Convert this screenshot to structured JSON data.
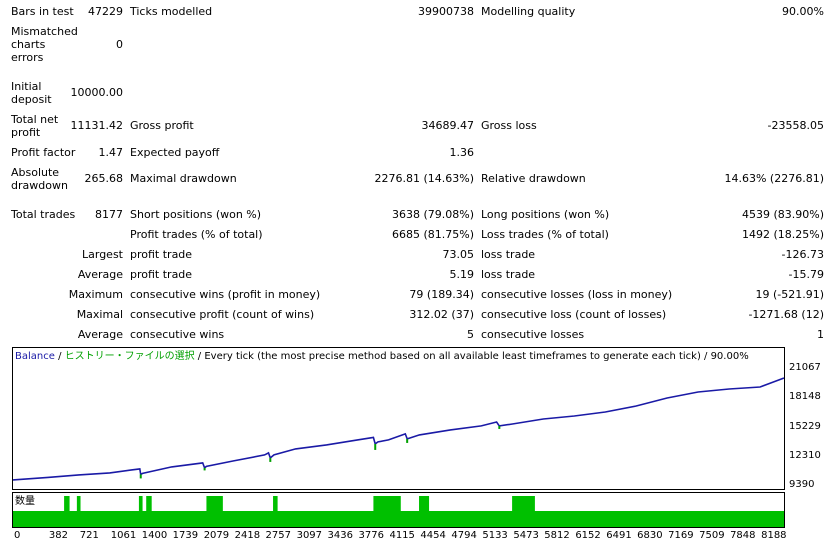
{
  "report": {
    "bars_in_test": {
      "label": "Bars in test",
      "value": "47229"
    },
    "ticks_modelled": {
      "label": "Ticks modelled",
      "value": "39900738"
    },
    "modelling_quality": {
      "label": "Modelling quality",
      "value": "90.00%"
    },
    "mismatched": {
      "label": "Mismatched charts errors",
      "value": "0"
    },
    "initial_deposit": {
      "label": "Initial deposit",
      "value": "10000.00"
    },
    "total_net_profit": {
      "label": "Total net profit",
      "value": "11131.42"
    },
    "gross_profit": {
      "label": "Gross profit",
      "value": "34689.47"
    },
    "gross_loss": {
      "label": "Gross loss",
      "value": "-23558.05"
    },
    "profit_factor": {
      "label": "Profit factor",
      "value": "1.47"
    },
    "expected_payoff": {
      "label": "Expected payoff",
      "value": "1.36"
    },
    "absolute_drawdown": {
      "label": "Absolute drawdown",
      "value": "265.68"
    },
    "maximal_drawdown": {
      "label": "Maximal drawdown",
      "value": "2276.81 (14.63%)"
    },
    "relative_drawdown": {
      "label": "Relative drawdown",
      "value": "14.63% (2276.81)"
    },
    "total_trades": {
      "label": "Total trades",
      "value": "8177"
    },
    "short_positions": {
      "label": "Short positions (won %)",
      "value": "3638 (79.08%)"
    },
    "long_positions": {
      "label": "Long positions (won %)",
      "value": "4539 (83.90%)"
    },
    "profit_trades": {
      "label": "Profit trades (% of total)",
      "value": "6685 (81.75%)"
    },
    "loss_trades": {
      "label": "Loss trades (% of total)",
      "value": "1492 (18.25%)"
    },
    "largest": {
      "prefix": "Largest",
      "profit_label": "profit trade",
      "profit_value": "73.05",
      "loss_label": "loss trade",
      "loss_value": "-126.73"
    },
    "average": {
      "prefix": "Average",
      "profit_label": "profit trade",
      "profit_value": "5.19",
      "loss_label": "loss trade",
      "loss_value": "-15.79"
    },
    "maximum": {
      "prefix": "Maximum",
      "wins_label": "consecutive wins (profit in money)",
      "wins_value": "79 (189.34)",
      "losses_label": "consecutive losses (loss in money)",
      "losses_value": "19 (-521.91)"
    },
    "maximal": {
      "prefix": "Maximal",
      "profit_label": "consecutive profit (count of wins)",
      "profit_value": "312.02 (37)",
      "loss_label": "consecutive loss (count of losses)",
      "loss_value": "-1271.68 (12)"
    },
    "average_consec": {
      "prefix": "Average",
      "wins_label": "consecutive wins",
      "wins_value": "5",
      "losses_label": "consecutive losses",
      "losses_value": "1"
    }
  },
  "chart": {
    "legend_balance": "Balance",
    "legend_sep1": " / ",
    "legend_history": "ヒストリー・ファイルの選択",
    "legend_rest": " / Every tick (the most precise method based on all available least timeframes to generate each tick) / 90.00%",
    "volume_label": "数量",
    "colors": {
      "balance": "#1a1aa6",
      "legend_green": "#00a000",
      "volume": "#00c000"
    }
  },
  "chart_data": {
    "type": "line",
    "y_ticks": [
      "21067",
      "18148",
      "15229",
      "12310",
      "9390"
    ],
    "x_ticks": [
      "0",
      "382",
      "721",
      "1061",
      "1400",
      "1739",
      "2079",
      "2418",
      "2757",
      "3097",
      "3436",
      "3776",
      "4115",
      "4454",
      "4794",
      "5133",
      "5473",
      "5812",
      "6152",
      "6491",
      "6830",
      "7169",
      "7509",
      "7848",
      "8188"
    ],
    "ylim": [
      9390,
      21800
    ],
    "xlim": [
      0,
      8450
    ],
    "balance": [
      [
        0,
        10000
      ],
      [
        382,
        10250
      ],
      [
        721,
        10500
      ],
      [
        1061,
        10700
      ],
      [
        1300,
        11000
      ],
      [
        1390,
        11100
      ],
      [
        1400,
        10550
      ],
      [
        1420,
        10650
      ],
      [
        1739,
        11300
      ],
      [
        2079,
        11700
      ],
      [
        2100,
        11200
      ],
      [
        2120,
        11350
      ],
      [
        2418,
        11900
      ],
      [
        2757,
        12500
      ],
      [
        2800,
        12700
      ],
      [
        2820,
        12200
      ],
      [
        2860,
        12500
      ],
      [
        3097,
        13100
      ],
      [
        3436,
        13500
      ],
      [
        3776,
        14000
      ],
      [
        3950,
        14250
      ],
      [
        3970,
        13600
      ],
      [
        4000,
        13800
      ],
      [
        4115,
        14000
      ],
      [
        4300,
        14600
      ],
      [
        4320,
        14100
      ],
      [
        4454,
        14500
      ],
      [
        4794,
        15000
      ],
      [
        5133,
        15400
      ],
      [
        5300,
        15800
      ],
      [
        5330,
        15400
      ],
      [
        5473,
        15600
      ],
      [
        5812,
        16100
      ],
      [
        6152,
        16400
      ],
      [
        6491,
        16800
      ],
      [
        6830,
        17400
      ],
      [
        7169,
        18200
      ],
      [
        7509,
        18800
      ],
      [
        7848,
        19100
      ],
      [
        8188,
        19300
      ],
      [
        8450,
        20200
      ]
    ],
    "loss_spikes": [
      [
        1400,
        10550,
        10150
      ],
      [
        2100,
        11200,
        10950
      ],
      [
        2820,
        12200,
        11800
      ],
      [
        3970,
        13600,
        13000
      ],
      [
        4320,
        14100,
        13700
      ],
      [
        5330,
        15400,
        15100
      ]
    ],
    "volume_blocks": [
      [
        560,
        620,
        "tall"
      ],
      [
        700,
        740,
        "tall"
      ],
      [
        1380,
        1420,
        "tall"
      ],
      [
        1460,
        1520,
        "tall"
      ],
      [
        2120,
        2300,
        "tall"
      ],
      [
        2850,
        2900,
        "tall"
      ],
      [
        3950,
        4250,
        "tall"
      ],
      [
        4450,
        4560,
        "tall"
      ],
      [
        5470,
        5720,
        "tall"
      ]
    ]
  }
}
